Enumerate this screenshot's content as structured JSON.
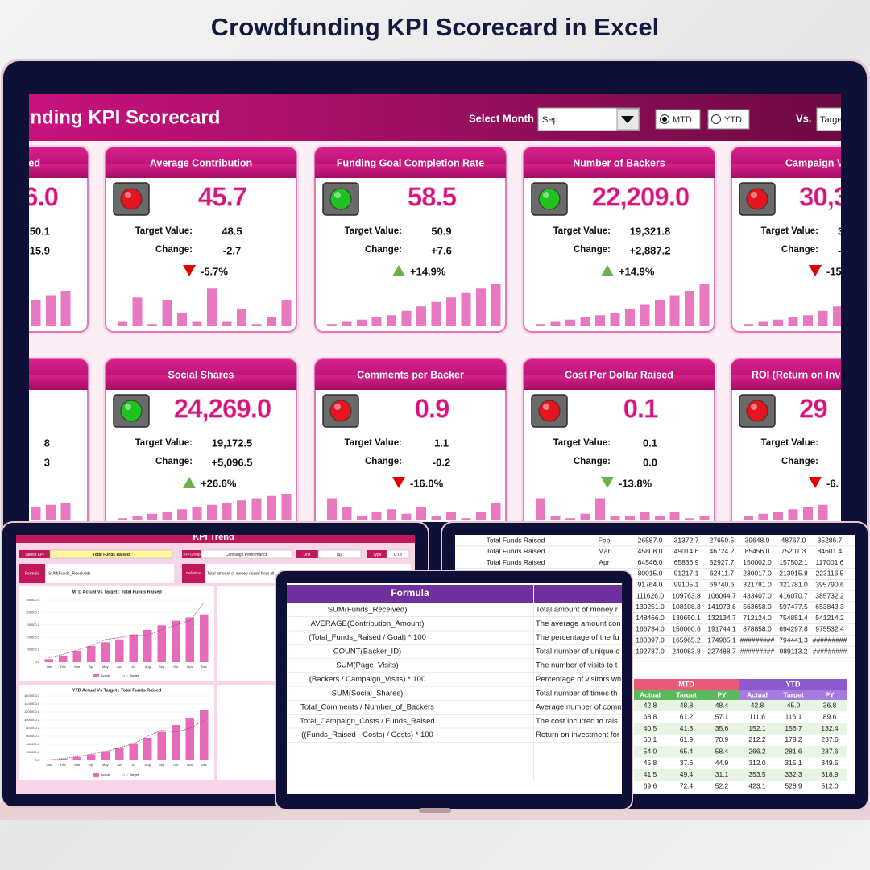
{
  "title": "Crowdfunding KPI Scorecard in Excel",
  "dashboard": {
    "title": "Crowdfunding KPI Scorecard",
    "select_month_label": "Select Month",
    "month": "Sep",
    "mtd": "MTD",
    "ytd": "YTD",
    "vs_label": "Vs.",
    "vs_value": "Targe"
  },
  "labels": {
    "target": "Target Value:",
    "change": "Change:"
  },
  "cards_row1": [
    {
      "title": "ed",
      "value": "6.0",
      "target": "50.1",
      "change": "15.9",
      "bars": [
        50,
        60,
        70,
        80
      ]
    },
    {
      "title": "Average Contribution",
      "status": "red",
      "value": "45.7",
      "target": "48.5",
      "change": "-2.7",
      "pct": "-5.7%",
      "direction": "down",
      "arrow_color": "#e00000",
      "bars": [
        10,
        65,
        5,
        60,
        30,
        10,
        85,
        10,
        40,
        5,
        20,
        60
      ]
    },
    {
      "title": "Funding Goal Completion Rate",
      "status": "green",
      "value": "58.5",
      "target": "50.9",
      "change": "+7.6",
      "pct": "+14.9%",
      "direction": "up",
      "arrow_color": "#6ab04c",
      "bars": [
        5,
        10,
        15,
        20,
        25,
        35,
        45,
        55,
        65,
        75,
        85,
        95
      ]
    },
    {
      "title": "Number of Backers",
      "status": "green",
      "value": "22,209.0",
      "target": "19,321.8",
      "change": "+2,887.2",
      "pct": "+14.9%",
      "direction": "up",
      "arrow_color": "#6ab04c",
      "bars": [
        5,
        10,
        15,
        20,
        25,
        30,
        40,
        50,
        60,
        70,
        80,
        95
      ]
    },
    {
      "title": "Campaign V",
      "status": "red",
      "value": "30,3",
      "target": "3",
      "change": "-",
      "pct": "-15",
      "direction": "down",
      "arrow_color": "#e00000",
      "bars": [
        5,
        10,
        15,
        20,
        25,
        35,
        45
      ]
    }
  ],
  "cards_row2": [
    {
      "target": "8",
      "change": "3",
      "bars": [
        30,
        35,
        40
      ]
    },
    {
      "title": "Social Shares",
      "status": "green",
      "value": "24,269.0",
      "target": "19,172.5",
      "change": "+5,096.5",
      "pct": "+26.6%",
      "direction": "up",
      "arrow_color": "#6ab04c",
      "bars": [
        5,
        10,
        15,
        20,
        25,
        30,
        35,
        40,
        45,
        50,
        55,
        60
      ]
    },
    {
      "title": "Comments per Backer",
      "status": "red",
      "value": "0.9",
      "target": "1.1",
      "change": "-0.2",
      "pct": "-16.0%",
      "direction": "down",
      "arrow_color": "#e00000",
      "bars": [
        50,
        30,
        10,
        20,
        25,
        15,
        30,
        10,
        20,
        5,
        20,
        40
      ]
    },
    {
      "title": "Cost Per Dollar Raised",
      "status": "red",
      "value": "0.1",
      "target": "0.1",
      "change": "0.0",
      "pct": "-13.8%",
      "direction": "down",
      "arrow_color": "#6ab04c",
      "bars": [
        50,
        10,
        5,
        15,
        50,
        10,
        10,
        20,
        10,
        20,
        5,
        10
      ]
    },
    {
      "title": "ROI (Return on Inve",
      "status": "red",
      "value": "29",
      "pct": "-6.",
      "direction": "down",
      "arrow_color": "#e00000",
      "bars": [
        10,
        15,
        20,
        25,
        30,
        35
      ]
    }
  ],
  "trend": {
    "title": "KPI Trend",
    "select_kpi_label": "Select KPI",
    "kpi": "Total Funds Raised",
    "kpi_group_label": "KPI Group",
    "kpi_group": "Campaign Performance",
    "unit_label": "Unit",
    "unit": "($)",
    "type_label": "Type",
    "type_value": "UTB",
    "formula_label": "Formula",
    "formula": "SUM(Funds_Received)",
    "definition_label": "Definition",
    "definition": "Total amount of money raised from all",
    "charts": [
      {
        "type": "bar",
        "title": "MTD Actual Vs Target : Total Funds Raised",
        "categories": [
          "Jan",
          "Feb",
          "Mar",
          "Apr",
          "May",
          "Jun",
          "Jul",
          "Aug",
          "Sep",
          "Oct",
          "Nov",
          "Dec"
        ],
        "series": [
          {
            "name": "Actual",
            "mark": "bar",
            "color": "#e46cb8",
            "values": [
              12000,
              26587,
              45808,
              64546,
              80015,
              91764,
              111626,
              130251,
              148466,
              166734,
              180397,
              192787
            ]
          },
          {
            "name": "Target",
            "mark": "line",
            "color": "#b03a80",
            "values": [
              18000,
              31373,
              49015,
              65837,
              91217,
              99105,
              109764,
              108108,
              130650,
              150061,
              165965,
              240984
            ]
          }
        ],
        "ylim": [
          0,
          250000
        ],
        "yticks": [
          {
            "value": 0,
            "label": "0.0"
          },
          {
            "value": 50000,
            "label": "50000.0"
          },
          {
            "value": 100000,
            "label": "100000.0"
          },
          {
            "value": 150000,
            "label": "150000.0"
          },
          {
            "value": 200000,
            "label": "200000.0"
          },
          {
            "value": 250000,
            "label": "250000.0"
          }
        ]
      },
      {
        "type": "bar",
        "title": "YTD Actual Vs Target : Total Funds Raised",
        "categories": [
          "Jan",
          "Feb",
          "Mar",
          "Apr",
          "May",
          "Jun",
          "Jul",
          "Aug",
          "Sep",
          "Oct",
          "Nov",
          "Dec"
        ],
        "series": [
          {
            "name": "Actual",
            "mark": "bar",
            "color": "#e46cb8",
            "values": [
              12000,
              40000,
              85000,
              150000,
              230000,
              320000,
              430000,
              560000,
              710000,
              880000,
              1060000,
              1250000
            ]
          },
          {
            "name": "Target",
            "mark": "line",
            "color": "#b03a80",
            "values": [
              15000,
              45000,
              90000,
              160000,
              215000,
              320000,
              415000,
              600000,
              750000,
              700000,
              800000,
              990000
            ]
          }
        ],
        "ylim": [
          0,
          1600000
        ],
        "yticks": [
          {
            "value": 0,
            "label": "0.0"
          },
          {
            "value": 200000,
            "label": "200000.0"
          },
          {
            "value": 400000,
            "label": "400000.0"
          },
          {
            "value": 600000,
            "label": "600000.0"
          },
          {
            "value": 800000,
            "label": "800000.0"
          },
          {
            "value": 1000000,
            "label": "1000000.0"
          },
          {
            "value": 1200000,
            "label": "1200000.0"
          },
          {
            "value": 1400000,
            "label": "1400000.0"
          },
          {
            "value": 1600000,
            "label": "1600000.0"
          }
        ]
      }
    ]
  },
  "formula_table": {
    "header": "Formula",
    "rows": [
      [
        "SUM(Funds_Received)",
        "Total amount of money r"
      ],
      [
        "AVERAGE(Contribution_Amount)",
        "The average amount con"
      ],
      [
        "(Total_Funds_Raised / Goal) * 100",
        "The percentage of the fu"
      ],
      [
        "COUNT(Backer_ID)",
        "Total number of unique c"
      ],
      [
        "SUM(Page_Visits)",
        "The number of visits to t"
      ],
      [
        "(Backers / Campaign_Visits) * 100",
        "Percentage of visitors wh"
      ],
      [
        "SUM(Social_Shares)",
        "Total number of times th"
      ],
      [
        "Total_Comments / Number_of_Backers",
        "Average number of comm"
      ],
      [
        "Total_Campaign_Costs / Funds_Raised",
        "The cost incurred to rais"
      ],
      [
        "((Funds_Raised - Costs) / Costs) * 100",
        "Return on investment for"
      ]
    ]
  },
  "data_table": {
    "rows": [
      [
        "Total Funds Raised",
        "Feb",
        "26587.0",
        "31372.7",
        "27650.5",
        "39648.0",
        "48767.0",
        "35286.7"
      ],
      [
        "Total Funds Raised",
        "Mar",
        "45808.0",
        "49014.6",
        "46724.2",
        "85456.0",
        "75201.3",
        "84601.4"
      ],
      [
        "Total Funds Raised",
        "Apr",
        "64546.0",
        "65836.9",
        "52927.7",
        "150002.0",
        "157502.1",
        "117001.6"
      ],
      [
        "80015.0",
        "91217.1",
        "62411.7",
        "230017.0",
        "213915.8",
        "223116.5"
      ],
      [
        "91764.0",
        "99105.1",
        "69740.6",
        "321781.0",
        "321781.0",
        "395790.6"
      ],
      [
        "111626.0",
        "109763.8",
        "106044.7",
        "433407.0",
        "416070.7",
        "385732.2"
      ],
      [
        "130251.0",
        "108108.3",
        "141973.6",
        "563658.0",
        "597477.5",
        "653843.3"
      ],
      [
        "148466.0",
        "130650.1",
        "132134.7",
        "712124.0",
        "754851.4",
        "541214.2"
      ],
      [
        "166734.0",
        "150060.6",
        "191744.1",
        "878858.0",
        "694297.8",
        "975532.4"
      ],
      [
        "180397.0",
        "165965.2",
        "174985.1",
        "#########",
        "794441.3",
        "#########"
      ],
      [
        "192787.0",
        "240983.8",
        "227488.7",
        "#########",
        "989113.2",
        "#########"
      ]
    ]
  },
  "mtd_ytd_table": {
    "groups": [
      "MTD",
      "YTD"
    ],
    "columns": [
      "Actual",
      "Target",
      "PY"
    ],
    "rows": [
      [
        "42.8",
        "48.8",
        "48.4",
        "42.8",
        "45.0",
        "36.8"
      ],
      [
        "68.8",
        "61.2",
        "57.1",
        "111.6",
        "116.1",
        "89.6"
      ],
      [
        "40.5",
        "41.3",
        "35.6",
        "152.1",
        "156.7",
        "132.4"
      ],
      [
        "60.1",
        "61.9",
        "70.9",
        "212.2",
        "178.2",
        "237.6"
      ],
      [
        "54.0",
        "65.4",
        "58.4",
        "266.2",
        "281.6",
        "237.6"
      ],
      [
        "45.8",
        "37.6",
        "44.9",
        "312.0",
        "315.1",
        "349.5"
      ],
      [
        "41.5",
        "49.4",
        "31.1",
        "353.5",
        "332.3",
        "318.9"
      ],
      [
        "69.6",
        "72.4",
        "52.2",
        "423.1",
        "528.9",
        "512.0"
      ]
    ]
  }
}
